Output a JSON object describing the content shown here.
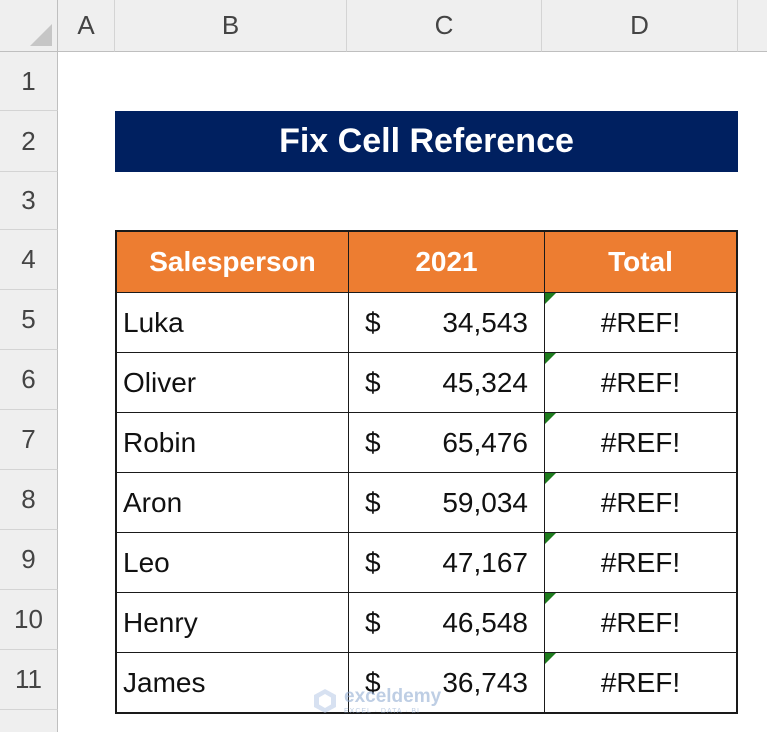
{
  "sheet": {
    "columns": [
      "A",
      "B",
      "C",
      "D"
    ],
    "rows": [
      "1",
      "2",
      "3",
      "4",
      "5",
      "6",
      "7",
      "8",
      "9",
      "10",
      "11"
    ]
  },
  "title": "Fix Cell Reference",
  "table": {
    "headers": [
      "Salesperson",
      "2021",
      "Total"
    ],
    "rows": [
      {
        "name": "Luka",
        "currency": "$",
        "amount": "34,543",
        "total": "#REF!"
      },
      {
        "name": "Oliver",
        "currency": "$",
        "amount": "45,324",
        "total": "#REF!"
      },
      {
        "name": "Robin",
        "currency": "$",
        "amount": "65,476",
        "total": "#REF!"
      },
      {
        "name": "Aron",
        "currency": "$",
        "amount": "59,034",
        "total": "#REF!"
      },
      {
        "name": "Leo",
        "currency": "$",
        "amount": "47,167",
        "total": "#REF!"
      },
      {
        "name": "Henry",
        "currency": "$",
        "amount": "46,548",
        "total": "#REF!"
      },
      {
        "name": "James",
        "currency": "$",
        "amount": "36,743",
        "total": "#REF!"
      }
    ]
  },
  "watermark": {
    "name": "exceldemy",
    "tagline": "EXCEL · DATA · BI"
  },
  "colors": {
    "title_bg": "#002060",
    "header_bg": "#ed7d31",
    "error_flag": "#1e7b1e"
  }
}
